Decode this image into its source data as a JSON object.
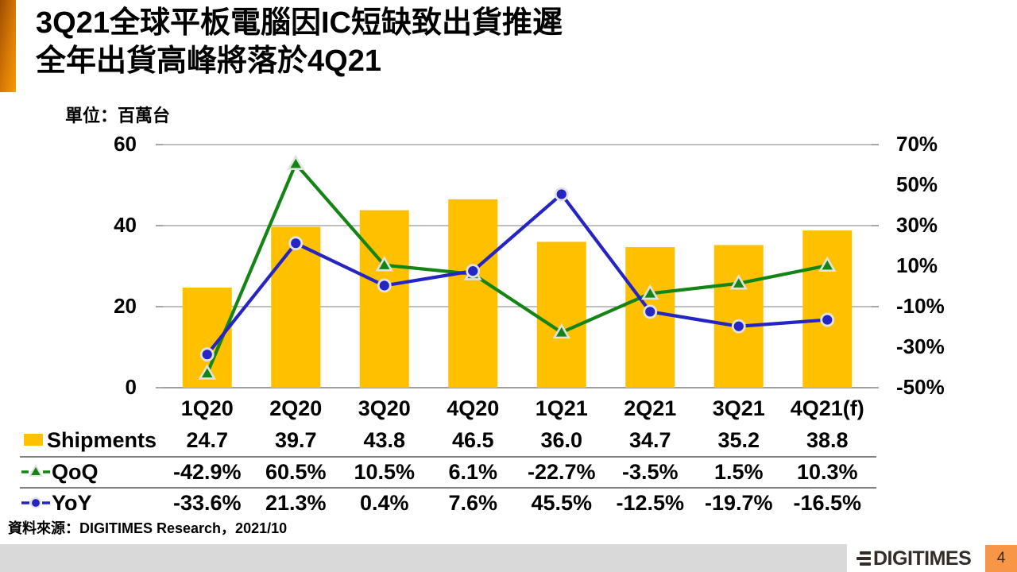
{
  "slide": {
    "title_line1": "3Q21全球平板電腦因IC短缺致出貨推遲",
    "title_line2": "全年出貨高峰將落於4Q21",
    "unit_label": "單位：百萬台",
    "source": "資料來源：DIGITIMES Research，2021/10",
    "page_number": "4",
    "logo_text": "DIGITIMES"
  },
  "colors": {
    "bar": "#ffc000",
    "qoq_line": "#148514",
    "yoy_line": "#2525c4",
    "marker_outline": "#e2e2e2",
    "gridline": "#7f7f7f"
  },
  "chart_data": {
    "type": "bar",
    "subtype": "bar-line combo, dual axis",
    "title": "",
    "unit": "百萬台",
    "categories": [
      "1Q20",
      "2Q20",
      "3Q20",
      "4Q20",
      "1Q21",
      "2Q21",
      "3Q21",
      "4Q21(f)"
    ],
    "series": [
      {
        "name": "Shipments",
        "type": "bar",
        "axis": "left",
        "values": [
          24.7,
          39.7,
          43.8,
          46.5,
          36.0,
          34.7,
          35.2,
          38.8
        ]
      },
      {
        "name": "QoQ",
        "type": "line",
        "axis": "right",
        "marker": "triangle",
        "values": [
          -42.9,
          60.5,
          10.5,
          6.1,
          -22.7,
          -3.5,
          1.5,
          10.3
        ]
      },
      {
        "name": "YoY",
        "type": "line",
        "axis": "right",
        "marker": "circle",
        "values": [
          -33.6,
          21.3,
          0.4,
          7.6,
          45.5,
          -12.5,
          -19.7,
          -16.5
        ]
      }
    ],
    "left_axis": {
      "min": 0,
      "max": 60,
      "ticks": [
        60,
        40,
        20,
        0
      ]
    },
    "right_axis": {
      "min": -50,
      "max": 70,
      "tick_labels": [
        "70%",
        "50%",
        "30%",
        "10%",
        "-10%",
        "-30%",
        "-50%"
      ]
    },
    "grid": "horizontal gridlines at left-axis ticks",
    "legend_position": "table rows below chart"
  },
  "table": {
    "rows": [
      {
        "label": "Shipments",
        "legend": "bar-swatch",
        "values": [
          "24.7",
          "39.7",
          "43.8",
          "46.5",
          "36.0",
          "34.7",
          "35.2",
          "38.8"
        ]
      },
      {
        "label": "QoQ",
        "legend": "triangle-line",
        "values": [
          "-42.9%",
          "60.5%",
          "10.5%",
          "6.1%",
          "-22.7%",
          "-3.5%",
          "1.5%",
          "10.3%"
        ]
      },
      {
        "label": "YoY",
        "legend": "circle-line",
        "values": [
          "-33.6%",
          "21.3%",
          "0.4%",
          "7.6%",
          "45.5%",
          "-12.5%",
          "-19.7%",
          "-16.5%"
        ]
      }
    ]
  }
}
